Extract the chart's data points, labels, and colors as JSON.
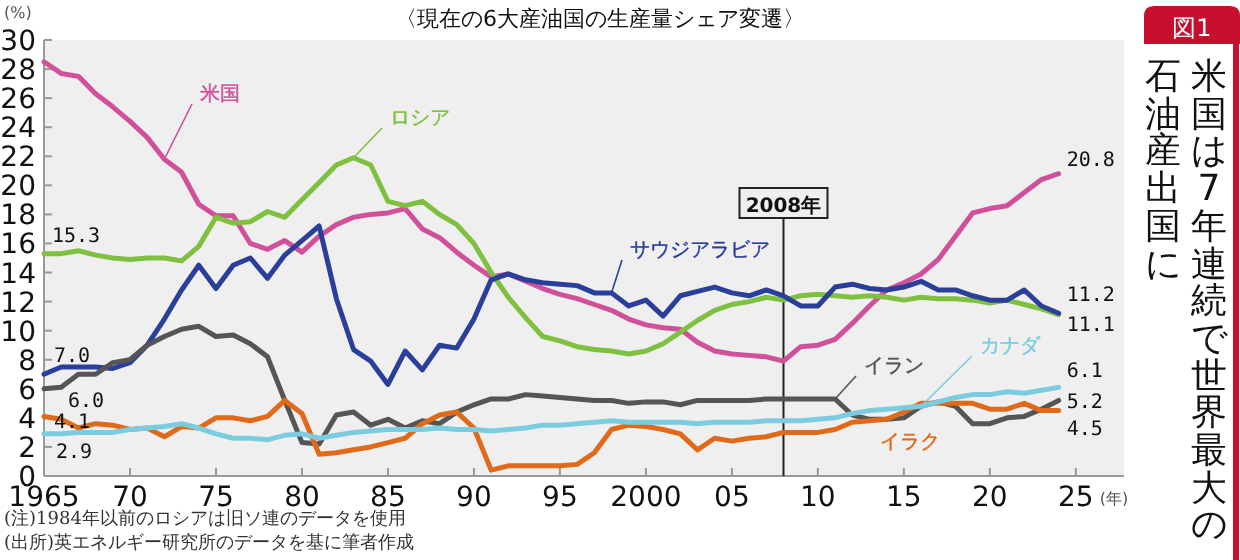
{
  "chart_data": {
    "type": "line",
    "title": "米国は7年連続で世界最大の石油産出国に",
    "subtitle": "〈現在の6大産油国の生産量シェア変遷〉",
    "ylabel": "(%)",
    "xlabel": "(年)",
    "x": [
      1965,
      1966,
      1967,
      1968,
      1969,
      1970,
      1971,
      1972,
      1973,
      1974,
      1975,
      1976,
      1977,
      1978,
      1979,
      1980,
      1981,
      1982,
      1983,
      1984,
      1985,
      1986,
      1987,
      1988,
      1989,
      1990,
      1991,
      1992,
      1993,
      1994,
      1995,
      1996,
      1997,
      1998,
      1999,
      2000,
      2001,
      2002,
      2003,
      2004,
      2005,
      2006,
      2007,
      2008,
      2009,
      2010,
      2011,
      2012,
      2013,
      2014,
      2015,
      2016,
      2017,
      2018,
      2019,
      2020,
      2021,
      2022,
      2023,
      2024
    ],
    "xlim": [
      1965,
      2027.8
    ],
    "xticks": [
      {
        "value": 1965,
        "label": "1965"
      },
      {
        "value": 1970,
        "label": "70"
      },
      {
        "value": 1975,
        "label": "75"
      },
      {
        "value": 1980,
        "label": "80"
      },
      {
        "value": 1985,
        "label": "85"
      },
      {
        "value": 1990,
        "label": "90"
      },
      {
        "value": 1995,
        "label": "95"
      },
      {
        "value": 2000,
        "label": "2000"
      },
      {
        "value": 2005,
        "label": "05"
      },
      {
        "value": 2010,
        "label": "10"
      },
      {
        "value": 2015,
        "label": "15"
      },
      {
        "value": 2020,
        "label": "20"
      },
      {
        "value": 2025,
        "label": "25"
      }
    ],
    "ylim": [
      0,
      30
    ],
    "yticks": [
      0,
      2,
      4,
      6,
      8,
      10,
      12,
      14,
      16,
      18,
      20,
      22,
      24,
      26,
      28,
      30
    ],
    "grid": false,
    "legend": false,
    "marker": "none",
    "line_style": "solid",
    "series": [
      {
        "name": "米国",
        "color": "#d0509a",
        "values": [
          28.5,
          27.7,
          27.5,
          26.3,
          25.4,
          24.4,
          23.3,
          21.8,
          20.9,
          18.7,
          17.9,
          17.9,
          16.0,
          15.6,
          16.2,
          15.4,
          16.5,
          17.3,
          17.8,
          18.0,
          18.1,
          18.4,
          17.0,
          16.4,
          15.4,
          14.5,
          13.7,
          13.9,
          13.4,
          12.9,
          12.5,
          12.2,
          11.8,
          11.4,
          10.8,
          10.4,
          10.2,
          10.1,
          9.2,
          8.6,
          8.4,
          8.3,
          8.2,
          7.9,
          8.9,
          9.0,
          9.4,
          10.5,
          11.7,
          12.8,
          13.3,
          13.9,
          14.9,
          16.5,
          18.1,
          18.4,
          18.6,
          19.5,
          20.4,
          20.8
        ],
        "value_labels": [
          null,
          null,
          null,
          null,
          null,
          null,
          null,
          null,
          null,
          null,
          null,
          null,
          null,
          null,
          null,
          null,
          null,
          null,
          null,
          null,
          null,
          null,
          null,
          null,
          null,
          null,
          null,
          null,
          null,
          null,
          null,
          null,
          null,
          null,
          null,
          null,
          null,
          null,
          null,
          null,
          null,
          null,
          null,
          null,
          null,
          null,
          null,
          null,
          null,
          null,
          null,
          null,
          null,
          null,
          null,
          null,
          null,
          null,
          null,
          "20.8"
        ]
      },
      {
        "name": "ロシア",
        "color": "#80c040",
        "values": [
          15.3,
          15.3,
          15.5,
          15.2,
          15.0,
          14.9,
          15.0,
          15.0,
          14.8,
          15.8,
          17.8,
          17.4,
          17.5,
          18.2,
          17.8,
          19.0,
          20.2,
          21.4,
          21.9,
          21.4,
          18.9,
          18.6,
          18.9,
          18.0,
          17.3,
          16.0,
          14.0,
          12.3,
          10.9,
          9.6,
          9.3,
          8.9,
          8.7,
          8.6,
          8.4,
          8.6,
          9.1,
          9.9,
          10.7,
          11.4,
          11.8,
          12.0,
          12.3,
          12.1,
          12.4,
          12.5,
          12.4,
          12.3,
          12.4,
          12.3,
          12.1,
          12.3,
          12.2,
          12.2,
          12.1,
          11.9,
          12.1,
          11.8,
          11.5,
          11.1
        ],
        "value_labels": [
          "15.3",
          null,
          null,
          null,
          null,
          null,
          null,
          null,
          null,
          null,
          null,
          null,
          null,
          null,
          null,
          null,
          null,
          null,
          null,
          null,
          null,
          null,
          null,
          null,
          null,
          null,
          null,
          null,
          null,
          null,
          null,
          null,
          null,
          null,
          null,
          null,
          null,
          null,
          null,
          null,
          null,
          null,
          null,
          null,
          null,
          null,
          null,
          null,
          null,
          null,
          null,
          null,
          null,
          null,
          null,
          null,
          null,
          null,
          null,
          "11.1"
        ]
      },
      {
        "name": "サウジアラビア",
        "color": "#2a3f9a",
        "values": [
          7.0,
          7.5,
          7.5,
          7.5,
          7.4,
          7.8,
          9.0,
          10.8,
          12.8,
          14.5,
          12.9,
          14.5,
          15.0,
          13.6,
          15.2,
          16.2,
          17.2,
          12.2,
          8.7,
          7.9,
          6.3,
          8.6,
          7.3,
          9.0,
          8.8,
          10.8,
          13.5,
          13.9,
          13.5,
          13.3,
          13.2,
          13.1,
          12.6,
          12.6,
          11.7,
          12.1,
          11.0,
          12.4,
          12.7,
          13.0,
          12.6,
          12.4,
          12.8,
          12.4,
          11.7,
          11.7,
          13.0,
          13.2,
          12.9,
          12.8,
          13.0,
          13.4,
          12.8,
          12.8,
          12.4,
          12.1,
          12.1,
          12.8,
          11.7,
          11.2
        ],
        "value_labels": [
          "7.0",
          null,
          null,
          null,
          null,
          null,
          null,
          null,
          null,
          null,
          null,
          null,
          null,
          null,
          null,
          null,
          null,
          null,
          null,
          null,
          null,
          null,
          null,
          null,
          null,
          null,
          null,
          null,
          null,
          null,
          null,
          null,
          null,
          null,
          null,
          null,
          null,
          null,
          null,
          null,
          null,
          null,
          null,
          null,
          null,
          null,
          null,
          null,
          null,
          null,
          null,
          null,
          null,
          null,
          null,
          null,
          null,
          null,
          null,
          "11.2"
        ]
      },
      {
        "name": "イラン",
        "color": "#555555",
        "values": [
          6.0,
          6.1,
          7.0,
          7.0,
          7.8,
          8.0,
          9.0,
          9.6,
          10.1,
          10.3,
          9.6,
          9.7,
          9.1,
          8.2,
          5.2,
          2.3,
          2.2,
          4.2,
          4.4,
          3.5,
          3.9,
          3.3,
          3.8,
          3.6,
          4.4,
          4.9,
          5.3,
          5.3,
          5.6,
          5.5,
          5.4,
          5.3,
          5.2,
          5.2,
          5.0,
          5.1,
          5.1,
          4.9,
          5.2,
          5.2,
          5.2,
          5.2,
          5.3,
          5.3,
          5.3,
          5.3,
          5.3,
          4.2,
          3.9,
          3.9,
          4.0,
          4.8,
          5.1,
          4.8,
          3.6,
          3.6,
          4.0,
          4.1,
          4.6,
          5.2
        ],
        "value_labels": [
          "6.0",
          null,
          null,
          null,
          null,
          null,
          null,
          null,
          null,
          null,
          null,
          null,
          null,
          null,
          null,
          null,
          null,
          null,
          null,
          null,
          null,
          null,
          null,
          null,
          null,
          null,
          null,
          null,
          null,
          null,
          null,
          null,
          null,
          null,
          null,
          null,
          null,
          null,
          null,
          null,
          null,
          null,
          null,
          null,
          null,
          null,
          null,
          null,
          null,
          null,
          null,
          null,
          null,
          null,
          null,
          null,
          null,
          null,
          null,
          "5.2"
        ]
      },
      {
        "name": "イラク",
        "color": "#e06a1a",
        "values": [
          4.1,
          3.9,
          3.3,
          3.6,
          3.5,
          3.2,
          3.3,
          2.7,
          3.4,
          3.3,
          4.0,
          4.0,
          3.8,
          4.1,
          5.2,
          4.3,
          1.5,
          1.6,
          1.8,
          2.0,
          2.3,
          2.6,
          3.6,
          4.2,
          4.4,
          3.3,
          0.4,
          0.7,
          0.7,
          0.7,
          0.7,
          0.8,
          1.6,
          3.2,
          3.5,
          3.4,
          3.2,
          2.9,
          1.8,
          2.6,
          2.4,
          2.6,
          2.7,
          3.0,
          3.0,
          3.0,
          3.2,
          3.7,
          3.8,
          3.9,
          4.4,
          5.0,
          5.0,
          5.0,
          5.0,
          4.6,
          4.6,
          5.0,
          4.5,
          4.5
        ],
        "value_labels": [
          "4.1",
          null,
          null,
          null,
          null,
          null,
          null,
          null,
          null,
          null,
          null,
          null,
          null,
          null,
          null,
          null,
          null,
          null,
          null,
          null,
          null,
          null,
          null,
          null,
          null,
          null,
          null,
          null,
          null,
          null,
          null,
          null,
          null,
          null,
          null,
          null,
          null,
          null,
          null,
          null,
          null,
          null,
          null,
          null,
          null,
          null,
          null,
          null,
          null,
          null,
          null,
          null,
          null,
          null,
          null,
          null,
          null,
          null,
          null,
          "4.5"
        ]
      },
      {
        "name": "カナダ",
        "color": "#7ccce0",
        "values": [
          2.9,
          2.9,
          3.0,
          3.0,
          3.0,
          3.2,
          3.3,
          3.4,
          3.6,
          3.3,
          2.9,
          2.6,
          2.6,
          2.5,
          2.8,
          2.9,
          2.6,
          2.8,
          3.0,
          3.1,
          3.2,
          3.2,
          3.2,
          3.3,
          3.2,
          3.2,
          3.1,
          3.2,
          3.3,
          3.5,
          3.5,
          3.6,
          3.7,
          3.8,
          3.7,
          3.7,
          3.7,
          3.7,
          3.6,
          3.7,
          3.7,
          3.7,
          3.8,
          3.8,
          3.8,
          3.9,
          4.0,
          4.3,
          4.5,
          4.6,
          4.7,
          4.8,
          5.1,
          5.4,
          5.6,
          5.6,
          5.8,
          5.7,
          5.9,
          6.1
        ],
        "value_labels": [
          "2.9",
          null,
          null,
          null,
          null,
          null,
          null,
          null,
          null,
          null,
          null,
          null,
          null,
          null,
          null,
          null,
          null,
          null,
          null,
          null,
          null,
          null,
          null,
          null,
          null,
          null,
          null,
          null,
          null,
          null,
          null,
          null,
          null,
          null,
          null,
          null,
          null,
          null,
          null,
          null,
          null,
          null,
          null,
          null,
          null,
          null,
          null,
          null,
          null,
          null,
          null,
          null,
          null,
          null,
          null,
          null,
          null,
          null,
          null,
          "6.1"
        ]
      }
    ],
    "ref_lines": [
      {
        "axis": "x",
        "value": 2008,
        "label": "2008年",
        "color": "#222222"
      }
    ],
    "annotations": [
      "図1",
      "(注)1984年以前のロシアは旧ソ連のデータを使用",
      "(出所)英エネルギー研究所のデータを基に筆者作成"
    ]
  }
}
